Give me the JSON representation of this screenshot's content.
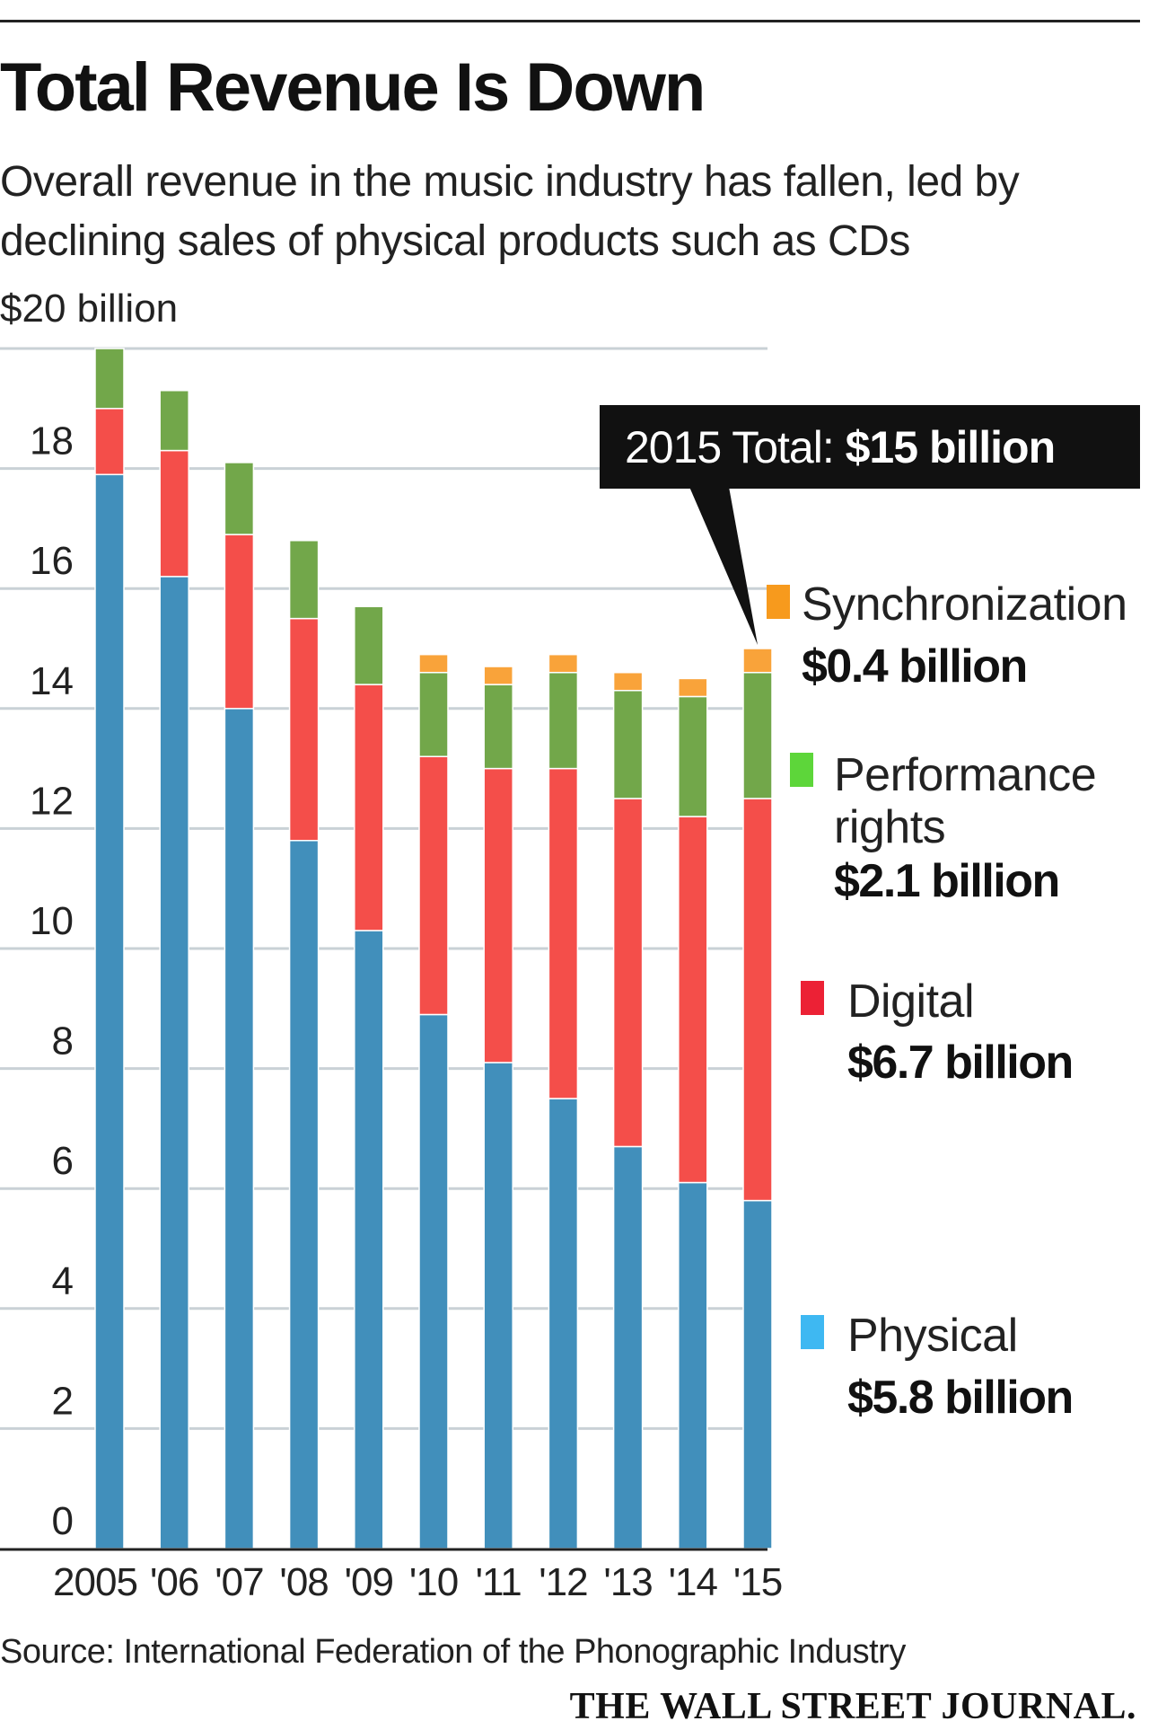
{
  "header": {
    "title": "Total Revenue Is Down",
    "subtitle": "Overall revenue in the music industry has fallen, led by declining sales of physical products such as CDs"
  },
  "footer": {
    "source": "Source: International Federation of the Phonographic Industry",
    "publisher": "THE WALL STREET JOURNAL."
  },
  "colors": {
    "physical": "#418fbb",
    "digital": "#f44e4a",
    "performance": "#72a74a",
    "synchronization": "#f9a33a",
    "legend_physical": "#3eb8f2",
    "legend_digital": "#ec2135",
    "legend_performance": "#5dd63a",
    "legend_synchronization": "#f79a1d",
    "grid": "#c9d1d6",
    "callout_bg": "#111111"
  },
  "chart_data": {
    "type": "bar",
    "stacked": true,
    "categories": [
      "2005",
      "'06",
      "'07",
      "'08",
      "'09",
      "'10",
      "'11",
      "'12",
      "'13",
      "'14",
      "'15"
    ],
    "y_unit_label": "$20 billion",
    "ylim": [
      0,
      20
    ],
    "y_ticks": [
      0,
      2,
      4,
      6,
      8,
      10,
      12,
      14,
      16,
      18
    ],
    "grid": true,
    "legend_position": "right",
    "series": [
      {
        "name": "Physical",
        "color_key": "physical",
        "legend_color_key": "legend_physical",
        "legend_value": "$5.8 billion",
        "values": [
          17.9,
          16.2,
          14.0,
          11.8,
          10.3,
          8.9,
          8.1,
          7.5,
          6.7,
          6.1,
          5.8
        ]
      },
      {
        "name": "Digital",
        "color_key": "digital",
        "legend_color_key": "legend_digital",
        "legend_value": "$6.7 billion",
        "values": [
          1.1,
          2.1,
          2.9,
          3.7,
          4.1,
          4.3,
          4.9,
          5.5,
          5.8,
          6.1,
          6.7
        ]
      },
      {
        "name": "Performance rights",
        "name_lines": [
          "Performance",
          "rights"
        ],
        "color_key": "performance",
        "legend_color_key": "legend_performance",
        "legend_value": "$2.1 billion",
        "values": [
          1.0,
          1.0,
          1.2,
          1.3,
          1.3,
          1.4,
          1.4,
          1.6,
          1.8,
          2.0,
          2.1
        ]
      },
      {
        "name": "Synchronization",
        "color_key": "synchronization",
        "legend_color_key": "legend_synchronization",
        "legend_value": "$0.4 billion",
        "values": [
          0,
          0,
          0,
          0,
          0,
          0.3,
          0.3,
          0.3,
          0.3,
          0.3,
          0.4
        ]
      }
    ],
    "annotation": {
      "prefix": "2015 Total: ",
      "value": "$15 billion",
      "target_category": "'15"
    }
  }
}
